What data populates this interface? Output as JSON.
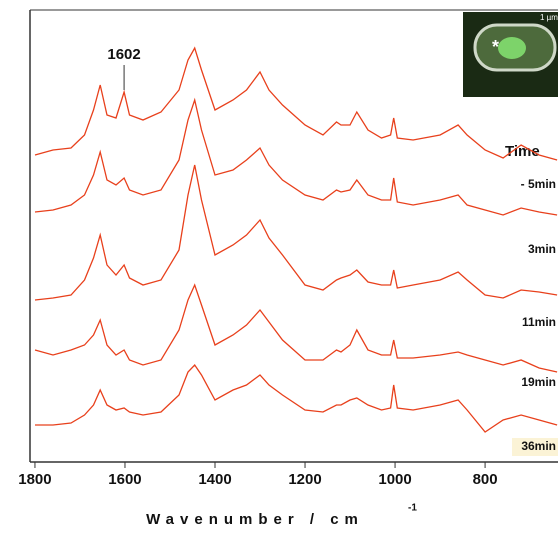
{
  "chart_data": {
    "type": "line",
    "x_label": "Wavenumber / cm",
    "x_label_sup": "-1",
    "legend_title": "Time",
    "annotation": {
      "x": 1602
    },
    "inset": {
      "marker": "*",
      "scale_label": "1 µm"
    },
    "xlim": [
      1811,
      638
    ],
    "ylim": [
      0,
      452
    ],
    "xticks": [
      1800,
      1600,
      1400,
      1200,
      1000,
      800
    ],
    "x": [
      1800,
      1760,
      1720,
      1690,
      1670,
      1655,
      1640,
      1620,
      1602,
      1590,
      1560,
      1520,
      1480,
      1460,
      1445,
      1430,
      1400,
      1360,
      1330,
      1300,
      1280,
      1250,
      1200,
      1160,
      1130,
      1120,
      1100,
      1085,
      1060,
      1030,
      1010,
      1003,
      995,
      960,
      900,
      860,
      840,
      800,
      760,
      720,
      680,
      640
    ],
    "series": [
      {
        "name": "- 5min",
        "color": "#e8401c",
        "values": [
          307,
          312,
          314,
          327,
          352,
          377,
          347,
          344,
          370,
          347,
          342,
          350,
          372,
          402,
          414,
          392,
          352,
          362,
          372,
          390,
          372,
          357,
          337,
          327,
          340,
          337,
          337,
          350,
          332,
          324,
          327,
          344,
          324,
          322,
          327,
          337,
          327,
          312,
          304,
          317,
          307,
          302
        ]
      },
      {
        "name": "3min",
        "color": "#e8401c",
        "values": [
          250,
          252,
          257,
          267,
          287,
          310,
          282,
          277,
          284,
          272,
          267,
          272,
          302,
          342,
          362,
          332,
          287,
          292,
          302,
          314,
          297,
          282,
          267,
          262,
          272,
          270,
          272,
          282,
          267,
          262,
          262,
          284,
          260,
          257,
          262,
          267,
          257,
          252,
          247,
          254,
          250,
          247
        ]
      },
      {
        "name": "11min",
        "color": "#e8401c",
        "values": [
          162,
          164,
          167,
          182,
          204,
          227,
          197,
          187,
          197,
          184,
          177,
          182,
          212,
          267,
          297,
          262,
          207,
          217,
          227,
          242,
          224,
          207,
          177,
          172,
          182,
          184,
          187,
          192,
          180,
          177,
          177,
          192,
          174,
          177,
          182,
          190,
          182,
          167,
          164,
          172,
          170,
          167
        ]
      },
      {
        "name": "19min",
        "color": "#e8401c",
        "values": [
          112,
          107,
          112,
          117,
          127,
          142,
          117,
          107,
          112,
          102,
          97,
          102,
          132,
          162,
          177,
          157,
          117,
          127,
          137,
          152,
          140,
          122,
          102,
          102,
          112,
          110,
          117,
          132,
          112,
          107,
          107,
          122,
          104,
          104,
          107,
          110,
          107,
          102,
          97,
          102,
          94,
          90
        ]
      },
      {
        "name": "36min",
        "color": "#e8401c",
        "values": [
          37,
          37,
          39,
          47,
          57,
          72,
          57,
          52,
          54,
          50,
          47,
          50,
          67,
          90,
          97,
          87,
          62,
          72,
          77,
          87,
          77,
          67,
          52,
          50,
          57,
          57,
          62,
          64,
          57,
          52,
          54,
          77,
          54,
          52,
          57,
          62,
          52,
          30,
          42,
          47,
          42,
          37
        ]
      }
    ]
  }
}
